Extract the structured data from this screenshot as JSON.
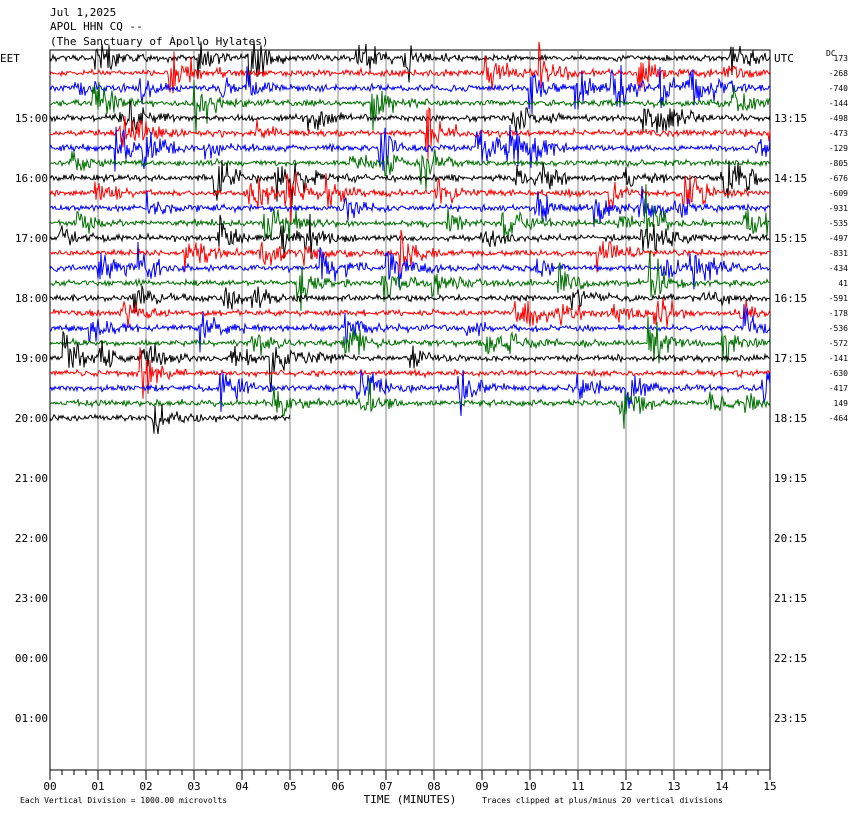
{
  "header": {
    "date": "Jul 1,2025",
    "station": "APOL HHN CQ --",
    "location": "(The Sanctuary of Apollo Hylates)"
  },
  "left_labels": [
    "EET",
    "15:00",
    "16:00",
    "17:00",
    "18:00",
    "19:00",
    "20:00",
    "21:00",
    "22:00",
    "23:00",
    "00:00",
    "01:00"
  ],
  "right_labels": [
    "UTC",
    "13:15",
    "14:15",
    "15:15",
    "16:15",
    "17:15",
    "18:15",
    "19:15",
    "20:15",
    "21:15",
    "22:15",
    "23:15"
  ],
  "dc_header": "DC",
  "dc_values": [
    173,
    -268,
    -740,
    -144,
    -498,
    -473,
    -129,
    -805,
    -676,
    -609,
    -931,
    -535,
    -497,
    -831,
    -434,
    41,
    -591,
    -178,
    -536,
    -572,
    -141,
    -630,
    -417,
    149,
    -464
  ],
  "trace_colors": [
    "#000000",
    "#ff0000",
    "#0000ff",
    "#007000"
  ],
  "x_axis": {
    "label": "TIME (MINUTES)",
    "ticks": [
      "00",
      "01",
      "02",
      "03",
      "04",
      "05",
      "06",
      "07",
      "08",
      "09",
      "10",
      "11",
      "12",
      "13",
      "14",
      "15"
    ]
  },
  "footer": {
    "scale_note": "Each Vertical Division = 1000.00 microvolts",
    "clip_note": "Traces clipped at plus/minus 20 vertical divisions"
  }
}
